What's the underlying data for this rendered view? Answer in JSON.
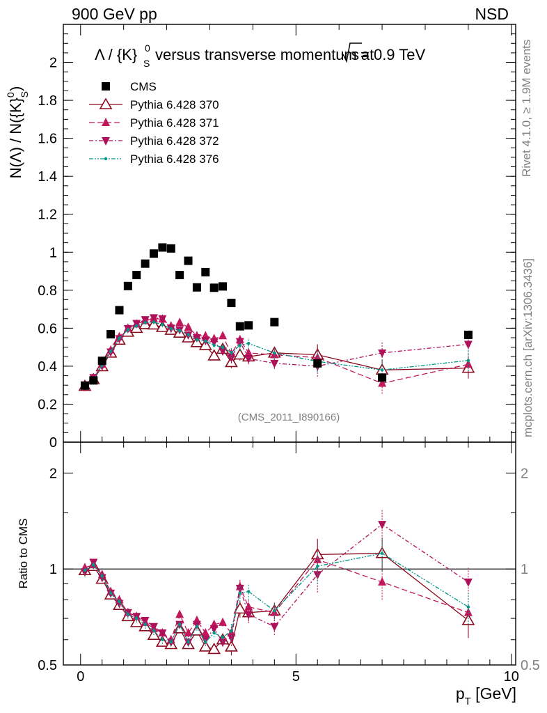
{
  "header": {
    "left": "900 GeV pp",
    "right": "NSD"
  },
  "side_labels": {
    "top": "Rivet 4.1.0, ≥ 1.9M events",
    "bottom": "mcplots.cern.ch [arXiv:1306.3436]"
  },
  "analysis_tag": "(CMS_2011_I890166)",
  "chart_data": {
    "type": "scatter",
    "title": "Λ / {K}S0 versus transverse momentum at √s = 0.9 TeV",
    "title_parts": {
      "prefix": "Λ / {K}",
      "sup": "0",
      "sub": "S",
      "middle": " versus transverse momentum at ",
      "sqrt": "s",
      "suffix": " = 0.9 TeV"
    },
    "ylabel_parts": {
      "main": "N(Λ)  /  N({K}",
      "sup": "0",
      "sub": "S",
      "end": ")"
    },
    "xlabel_parts": {
      "main": "p",
      "sub": "T",
      "end": " [GeV]"
    },
    "ratio_ylabel": "Ratio to CMS",
    "xlim": [
      -0.4,
      10.1
    ],
    "ylim": [
      0,
      2.2
    ],
    "ratio_ylim": [
      0.5,
      2.5
    ],
    "xticks": [
      0,
      5,
      10
    ],
    "xtick_labels": [
      "0",
      "5",
      "10"
    ],
    "yticks": [
      0,
      0.2,
      0.4,
      0.6,
      0.8,
      1,
      1.2,
      1.4,
      1.6,
      1.8,
      2
    ],
    "ytick_labels": [
      "0",
      "0.2",
      "0.4",
      "0.6",
      "0.8",
      "1",
      "1.2",
      "1.4",
      "1.6",
      "1.8",
      "2"
    ],
    "ratio_yticks": [
      0.5,
      1,
      2
    ],
    "ratio_ytick_labels": [
      "0.5",
      "1",
      "2"
    ],
    "x": [
      0.1,
      0.3,
      0.5,
      0.7,
      0.9,
      1.1,
      1.3,
      1.5,
      1.7,
      1.9,
      2.1,
      2.3,
      2.5,
      2.7,
      2.9,
      3.1,
      3.3,
      3.5,
      3.7,
      3.9,
      4.5,
      5.5,
      7.0,
      9.0
    ],
    "series": [
      {
        "name": "CMS",
        "marker": "square",
        "color": "#000000",
        "linestyle": "none",
        "values": [
          0.298,
          0.325,
          0.428,
          0.568,
          0.695,
          0.822,
          0.88,
          0.94,
          0.993,
          1.025,
          1.02,
          0.88,
          0.955,
          0.815,
          0.895,
          0.813,
          0.82,
          0.733,
          0.61,
          0.615,
          0.632,
          0.415,
          0.34,
          0.565
        ],
        "ratio": []
      },
      {
        "name": "Pythia 6.428 370",
        "marker": "triangle-up-open",
        "color": "#8b0a1e",
        "linestyle": "solid",
        "values": [
          0.295,
          0.33,
          0.398,
          0.47,
          0.538,
          0.58,
          0.6,
          0.62,
          0.618,
          0.605,
          0.59,
          0.575,
          0.55,
          0.525,
          0.51,
          0.455,
          0.49,
          0.42,
          0.46,
          0.45,
          0.47,
          0.46,
          0.38,
          0.39
        ],
        "ratio": [
          0.99,
          1.02,
          0.93,
          0.83,
          0.77,
          0.71,
          0.68,
          0.66,
          0.62,
          0.59,
          0.58,
          0.65,
          0.58,
          0.64,
          0.57,
          0.56,
          0.6,
          0.57,
          0.75,
          0.73,
          0.74,
          1.11,
          1.12,
          0.69
        ]
      },
      {
        "name": "Pythia 6.428 371",
        "marker": "triangle-up",
        "color": "#c2185b",
        "linestyle": "dashed",
        "values": [
          0.3,
          0.335,
          0.41,
          0.485,
          0.555,
          0.6,
          0.622,
          0.64,
          0.65,
          0.648,
          0.612,
          0.63,
          0.605,
          0.56,
          0.56,
          0.545,
          0.56,
          0.465,
          0.54,
          0.47,
          0.46,
          0.445,
          0.31,
          0.41
        ],
        "ratio": [
          1.01,
          1.03,
          0.96,
          0.85,
          0.8,
          0.73,
          0.71,
          0.68,
          0.65,
          0.63,
          0.6,
          0.72,
          0.63,
          0.69,
          0.63,
          0.67,
          0.68,
          0.63,
          0.88,
          0.76,
          0.73,
          1.07,
          0.91,
          0.73
        ]
      },
      {
        "name": "Pythia 6.428 372",
        "marker": "triangle-down",
        "color": "#b0105a",
        "linestyle": "dashdot",
        "values": [
          0.292,
          0.34,
          0.402,
          0.475,
          0.545,
          0.598,
          0.625,
          0.645,
          0.655,
          0.65,
          0.6,
          0.592,
          0.565,
          0.55,
          0.535,
          0.528,
          0.48,
          0.445,
          0.53,
          0.44,
          0.415,
          0.4,
          0.47,
          0.515
        ],
        "ratio": [
          0.98,
          1.05,
          0.94,
          0.84,
          0.78,
          0.73,
          0.71,
          0.69,
          0.66,
          0.63,
          0.59,
          0.67,
          0.59,
          0.67,
          0.6,
          0.65,
          0.59,
          0.61,
          0.87,
          0.72,
          0.66,
          0.96,
          1.38,
          0.91
        ]
      },
      {
        "name": "Pythia 6.428 376",
        "marker": "dot",
        "color": "#009688",
        "linestyle": "dashdotdot",
        "values": [
          0.294,
          0.332,
          0.405,
          0.478,
          0.548,
          0.592,
          0.612,
          0.63,
          0.632,
          0.618,
          0.598,
          0.588,
          0.566,
          0.54,
          0.532,
          0.51,
          0.5,
          0.472,
          0.51,
          0.52,
          0.47,
          0.425,
          0.38,
          0.43
        ],
        "ratio": [
          0.99,
          1.03,
          0.95,
          0.84,
          0.79,
          0.72,
          0.7,
          0.67,
          0.64,
          0.6,
          0.59,
          0.67,
          0.59,
          0.66,
          0.59,
          0.63,
          0.61,
          0.64,
          0.84,
          0.85,
          0.74,
          1.02,
          1.12,
          0.76
        ]
      }
    ]
  }
}
